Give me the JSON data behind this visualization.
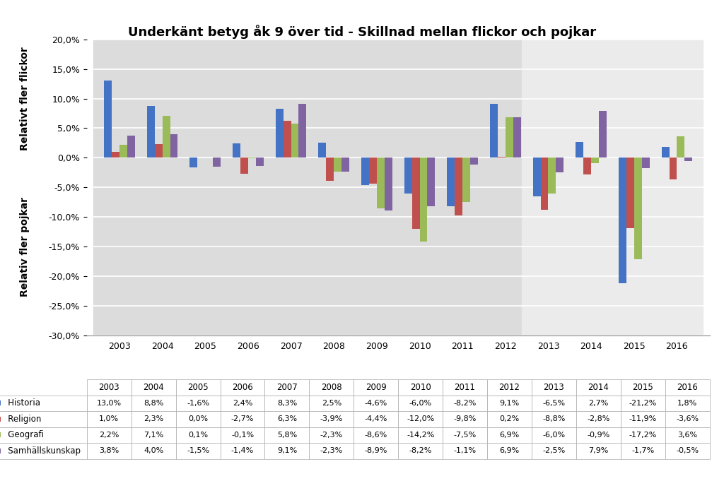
{
  "title": "Underkänt betyg åk 9 över tid - Skillnad mellan flickor och pojkar",
  "ylabel_top": "Relativt fler flickor",
  "ylabel_bottom": "Relativ fler pojkar",
  "years": [
    2003,
    2004,
    2005,
    2006,
    2007,
    2008,
    2009,
    2010,
    2011,
    2012,
    2013,
    2014,
    2015,
    2016
  ],
  "series": {
    "Historia": [
      13.0,
      8.8,
      -1.6,
      2.4,
      8.3,
      2.5,
      -4.6,
      -6.0,
      -8.2,
      9.1,
      -6.5,
      2.7,
      -21.2,
      1.8
    ],
    "Religion": [
      1.0,
      2.3,
      0.0,
      -2.7,
      6.3,
      -3.9,
      -4.4,
      -12.0,
      -9.8,
      0.2,
      -8.8,
      -2.8,
      -11.9,
      -3.6
    ],
    "Geografi": [
      2.2,
      7.1,
      0.1,
      -0.1,
      5.8,
      -2.3,
      -8.6,
      -14.2,
      -7.5,
      6.9,
      -6.0,
      -0.9,
      -17.2,
      3.6
    ],
    "Samhällskunskap": [
      3.8,
      4.0,
      -1.5,
      -1.4,
      9.1,
      -2.3,
      -8.9,
      -8.2,
      -1.1,
      6.9,
      -2.5,
      7.9,
      -1.7,
      -0.5
    ]
  },
  "colors": {
    "Historia": "#4472C4",
    "Religion": "#C0504D",
    "Geografi": "#9BBB59",
    "Samhällskunskap": "#8064A2"
  },
  "ylim": [
    -30.0,
    20.0
  ],
  "yticks": [
    -30.0,
    -25.0,
    -20.0,
    -15.0,
    -10.0,
    -5.0,
    0.0,
    5.0,
    10.0,
    15.0,
    20.0
  ],
  "bg_lpo94": "#DCDCDC",
  "bg_lgr11": "#EBEBEB",
  "bar_width": 0.18
}
